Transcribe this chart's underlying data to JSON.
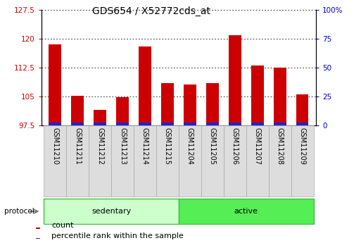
{
  "title": "GDS654 / X52772cds_at",
  "samples": [
    "GSM11210",
    "GSM11211",
    "GSM11212",
    "GSM11213",
    "GSM11214",
    "GSM11215",
    "GSM11204",
    "GSM11205",
    "GSM11206",
    "GSM11207",
    "GSM11208",
    "GSM11209"
  ],
  "count_values": [
    118.5,
    105.2,
    101.5,
    104.8,
    118.0,
    108.5,
    108.0,
    108.5,
    120.8,
    113.0,
    112.5,
    105.5
  ],
  "percentile_values": [
    2.0,
    2.5,
    2.5,
    2.0,
    2.5,
    2.5,
    2.0,
    2.5,
    2.5,
    2.5,
    2.5,
    2.5
  ],
  "baseline": 97.5,
  "ylim_left": [
    97.5,
    127.5
  ],
  "ylim_right": [
    0,
    100
  ],
  "yticks_left": [
    97.5,
    105.0,
    112.5,
    120.0,
    127.5
  ],
  "yticks_right": [
    0,
    25,
    50,
    75,
    100
  ],
  "ytick_labels_left": [
    "97.5",
    "105",
    "112.5",
    "120",
    "127.5"
  ],
  "ytick_labels_right": [
    "0",
    "25",
    "50",
    "75",
    "100%"
  ],
  "groups": [
    {
      "label": "sedentary",
      "start": 0,
      "end": 5,
      "color": "#ccffcc",
      "edge": "#44bb44"
    },
    {
      "label": "active",
      "start": 6,
      "end": 11,
      "color": "#55ee55",
      "edge": "#44bb44"
    }
  ],
  "protocol_label": "protocol",
  "bar_color_count": "#cc0000",
  "bar_color_pct": "#2222cc",
  "bar_width": 0.55,
  "background_color": "#ffffff",
  "title_fontsize": 10,
  "tick_fontsize": 7.5,
  "label_fontsize": 7,
  "legend_fontsize": 8,
  "group_fontsize": 8
}
